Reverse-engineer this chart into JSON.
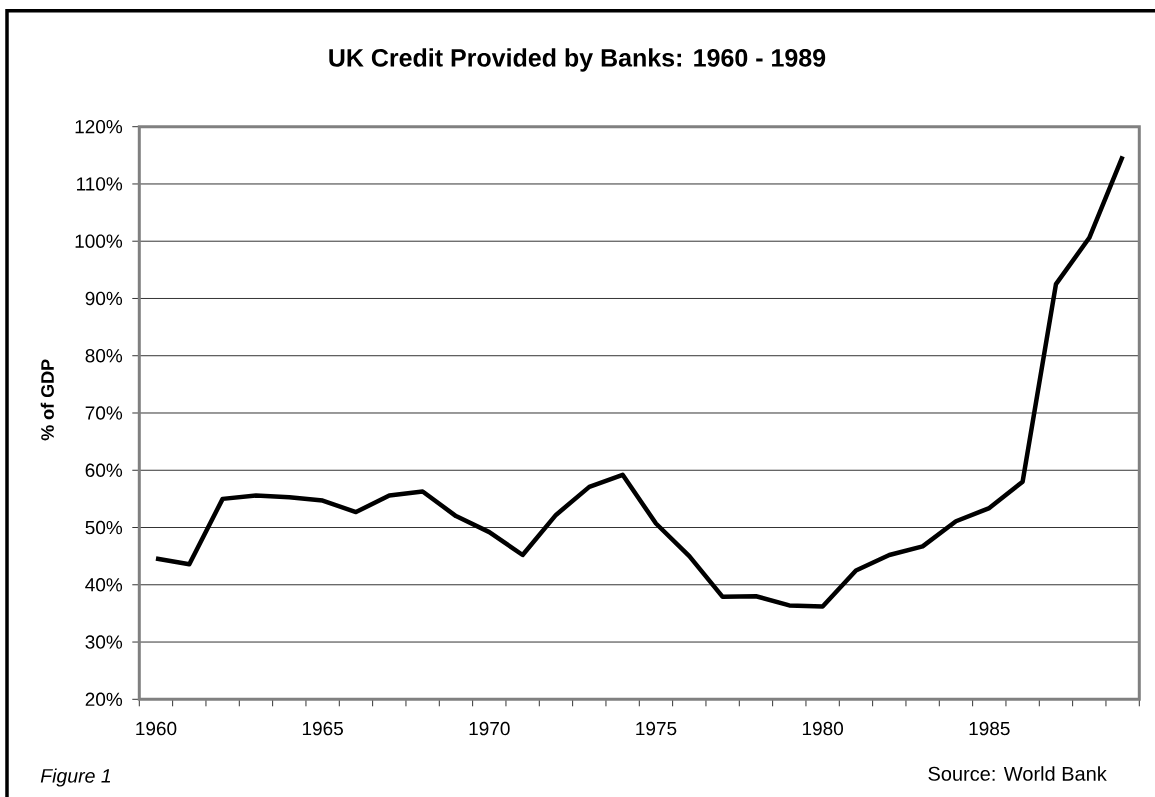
{
  "chart_data": {
    "type": "line",
    "title": "UK Credit Provided by Banks: 1960 - 1989",
    "ylabel": "% of GDP",
    "categories": [
      "1960",
      null,
      null,
      null,
      null,
      "1965",
      null,
      null,
      null,
      null,
      "1970",
      null,
      null,
      null,
      null,
      "1975",
      null,
      null,
      null,
      null,
      "1980",
      null,
      null,
      null,
      null,
      "1985",
      null,
      null,
      null,
      null
    ],
    "values": [
      44.6,
      43.6,
      55.0,
      55.6,
      55.3,
      54.7,
      52.7,
      55.6,
      56.3,
      52.0,
      49.2,
      45.2,
      52.2,
      57.1,
      59.2,
      50.7,
      45.0,
      37.9,
      38.0,
      36.4,
      36.2,
      42.5,
      45.2,
      46.7,
      51.1,
      53.4,
      58.0,
      92.5,
      100.6,
      114.8
    ],
    "color": "#000000",
    "ylim": [
      20,
      120
    ],
    "yticks": [
      {
        "value": 20,
        "label": "20%"
      },
      {
        "value": 30,
        "label": "30%"
      },
      {
        "value": 40,
        "label": "40%"
      },
      {
        "value": 50,
        "label": "50%"
      },
      {
        "value": 60,
        "label": "60%"
      },
      {
        "value": 70,
        "label": "70%"
      },
      {
        "value": 80,
        "label": "80%"
      },
      {
        "value": 90,
        "label": "90%"
      },
      {
        "value": 100,
        "label": "100%"
      },
      {
        "value": 110,
        "label": "110%"
      },
      {
        "value": 120,
        "label": "120%"
      }
    ],
    "grid": "y",
    "line_style": "solid",
    "annotations": [
      "Figure 1",
      "Source: World Bank"
    ]
  }
}
